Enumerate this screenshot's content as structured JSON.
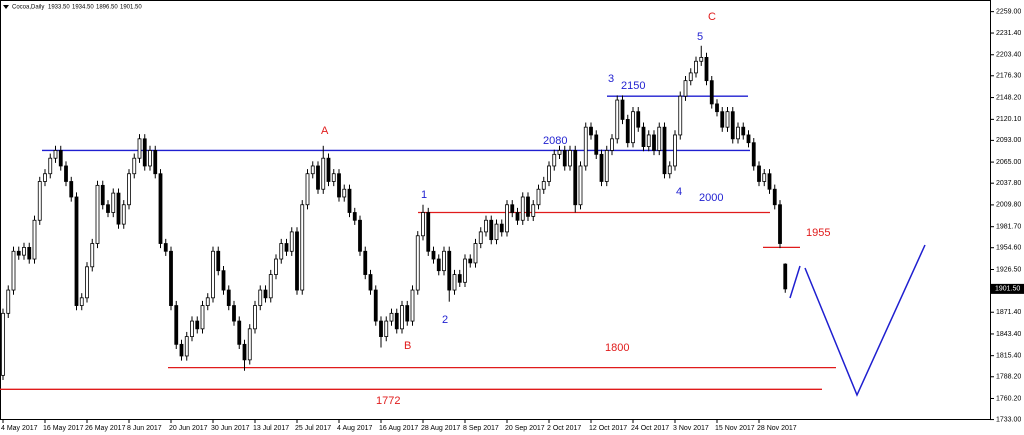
{
  "chart_data": {
    "type": "candlestick",
    "header": {
      "symbol": "Cocoa,Daily",
      "values": [
        {
          "value": 1933.5,
          "label": "1933.50"
        },
        {
          "value": 1934.5,
          "label": "1934.50"
        },
        {
          "value": 1896.5,
          "label": "1896.50"
        },
        {
          "value": 1901.5,
          "label": "1901.50"
        }
      ]
    },
    "last_price": {
      "value": 1901.5,
      "label": "1901.50"
    },
    "ylim": [
      1726,
      2274
    ],
    "yticks": [
      {
        "value": 2259,
        "label": "2259.00"
      },
      {
        "value": 2231.4,
        "label": "2231.40"
      },
      {
        "value": 2203.4,
        "label": "2203.40"
      },
      {
        "value": 2176.3,
        "label": "2176.30"
      },
      {
        "value": 2148.2,
        "label": "2148.20"
      },
      {
        "value": 2120.1,
        "label": "2120.10"
      },
      {
        "value": 2093,
        "label": "2093.00"
      },
      {
        "value": 2065,
        "label": "2065.00"
      },
      {
        "value": 2037.8,
        "label": "2037.80"
      },
      {
        "value": 2009.8,
        "label": "2009.80"
      },
      {
        "value": 1981.7,
        "label": "1981.70"
      },
      {
        "value": 1954.6,
        "label": "1954.60"
      },
      {
        "value": 1926.5,
        "label": "1926.50"
      },
      {
        "value": 1871.4,
        "label": "1871.40"
      },
      {
        "value": 1843.4,
        "label": "1843.40"
      },
      {
        "value": 1815.4,
        "label": "1815.40"
      },
      {
        "value": 1788.2,
        "label": "1788.20"
      },
      {
        "value": 1760.2,
        "label": "1760.20"
      },
      {
        "value": 1733,
        "label": "1733.00"
      }
    ],
    "categories": [
      "4 May 2017",
      null,
      null,
      null,
      null,
      null,
      null,
      null,
      "16 May 2017",
      null,
      null,
      null,
      null,
      null,
      null,
      null,
      "26 May 2017",
      null,
      null,
      null,
      null,
      null,
      null,
      null,
      "8 Jun 2017",
      null,
      null,
      null,
      null,
      null,
      null,
      null,
      "20 Jun 2017",
      null,
      null,
      null,
      null,
      null,
      null,
      null,
      "30 Jun 2017",
      null,
      null,
      null,
      null,
      null,
      null,
      null,
      "13 Jul 2017",
      null,
      null,
      null,
      null,
      null,
      null,
      null,
      "25 Jul 2017",
      null,
      null,
      null,
      null,
      null,
      null,
      null,
      "4 Aug 2017",
      null,
      null,
      null,
      null,
      null,
      null,
      null,
      "16 Aug 2017",
      null,
      null,
      null,
      null,
      null,
      null,
      null,
      "28 Aug 2017",
      null,
      null,
      null,
      null,
      null,
      null,
      null,
      "8 Sep 2017",
      null,
      null,
      null,
      null,
      null,
      null,
      null,
      "20 Sep 2017",
      null,
      null,
      null,
      null,
      null,
      null,
      null,
      "2 Oct 2017",
      null,
      null,
      null,
      null,
      null,
      null,
      null,
      "12 Oct 2017",
      null,
      null,
      null,
      null,
      null,
      null,
      null,
      "24 Oct 2017",
      null,
      null,
      null,
      null,
      null,
      null,
      null,
      "3 Nov 2017",
      null,
      null,
      null,
      null,
      null,
      null,
      null,
      "15 Nov 2017",
      null,
      null,
      null,
      null,
      null,
      null,
      null,
      "28 Nov 2017",
      null,
      null,
      null,
      null,
      null
    ],
    "candles": [
      [
        1790,
        1876,
        1784,
        1870
      ],
      [
        1870,
        1906,
        1864,
        1900
      ],
      [
        1900,
        1956,
        1894,
        1950
      ],
      [
        1950,
        1956,
        1939,
        1945
      ],
      [
        1945,
        1961,
        1939,
        1955
      ],
      [
        1955,
        1961,
        1934,
        1940
      ],
      [
        1940,
        1996,
        1934,
        1990
      ],
      [
        1990,
        2046,
        1984,
        2040
      ],
      [
        2040,
        2056,
        2034,
        2050
      ],
      [
        2050,
        2076,
        2044,
        2070
      ],
      [
        2070,
        2086,
        2064,
        2080
      ],
      [
        2080,
        2086,
        2054,
        2060
      ],
      [
        2060,
        2066,
        2034,
        2040
      ],
      [
        2040,
        2046,
        2014,
        2020
      ],
      [
        2020,
        2026,
        1874,
        1880
      ],
      [
        1880,
        1896,
        1874,
        1890
      ],
      [
        1890,
        1936,
        1884,
        1930
      ],
      [
        1930,
        1966,
        1924,
        1960
      ],
      [
        1960,
        2041,
        1954,
        2035
      ],
      [
        2035,
        2041,
        2004,
        2010
      ],
      [
        2010,
        2016,
        1994,
        2000
      ],
      [
        2000,
        2031,
        1994,
        2025
      ],
      [
        2025,
        2031,
        1979,
        1985
      ],
      [
        1985,
        2016,
        1979,
        2010
      ],
      [
        2010,
        2056,
        2004,
        2050
      ],
      [
        2050,
        2076,
        2044,
        2070
      ],
      [
        2070,
        2101,
        2064,
        2095
      ],
      [
        2095,
        2101,
        2054,
        2060
      ],
      [
        2060,
        2086,
        2054,
        2080
      ],
      [
        2080,
        2086,
        2044,
        2050
      ],
      [
        2050,
        2056,
        1954,
        1960
      ],
      [
        1960,
        1966,
        1944,
        1950
      ],
      [
        1950,
        1956,
        1874,
        1880
      ],
      [
        1880,
        1886,
        1824,
        1830
      ],
      [
        1830,
        1836,
        1809,
        1815
      ],
      [
        1815,
        1846,
        1809,
        1840
      ],
      [
        1840,
        1866,
        1834,
        1860
      ],
      [
        1860,
        1866,
        1844,
        1850
      ],
      [
        1850,
        1886,
        1844,
        1880
      ],
      [
        1880,
        1896,
        1874,
        1890
      ],
      [
        1890,
        1956,
        1884,
        1950
      ],
      [
        1950,
        1956,
        1919,
        1925
      ],
      [
        1925,
        1931,
        1894,
        1900
      ],
      [
        1900,
        1906,
        1874,
        1880
      ],
      [
        1880,
        1886,
        1854,
        1860
      ],
      [
        1860,
        1866,
        1824,
        1830
      ],
      [
        1830,
        1836,
        1796,
        1810
      ],
      [
        1810,
        1856,
        1804,
        1850
      ],
      [
        1850,
        1886,
        1844,
        1880
      ],
      [
        1880,
        1906,
        1874,
        1900
      ],
      [
        1900,
        1906,
        1884,
        1890
      ],
      [
        1890,
        1926,
        1884,
        1920
      ],
      [
        1920,
        1946,
        1914,
        1940
      ],
      [
        1940,
        1966,
        1934,
        1960
      ],
      [
        1960,
        1966,
        1944,
        1950
      ],
      [
        1950,
        1981,
        1944,
        1975
      ],
      [
        1975,
        1981,
        1894,
        1900
      ],
      [
        1900,
        2016,
        1894,
        2010
      ],
      [
        2010,
        2056,
        2004,
        2050
      ],
      [
        2050,
        2066,
        2044,
        2060
      ],
      [
        2060,
        2066,
        2024,
        2030
      ],
      [
        2030,
        2086,
        2024,
        2070
      ],
      [
        2070,
        2076,
        2034,
        2040
      ],
      [
        2040,
        2056,
        2034,
        2050
      ],
      [
        2050,
        2056,
        2014,
        2020
      ],
      [
        2020,
        2036,
        2014,
        2030
      ],
      [
        2030,
        2036,
        1994,
        2000
      ],
      [
        2000,
        2006,
        1984,
        1990
      ],
      [
        1990,
        1996,
        1944,
        1950
      ],
      [
        1950,
        1956,
        1914,
        1920
      ],
      [
        1920,
        1926,
        1894,
        1900
      ],
      [
        1900,
        1906,
        1854,
        1860
      ],
      [
        1860,
        1866,
        1826,
        1840
      ],
      [
        1840,
        1866,
        1834,
        1860
      ],
      [
        1860,
        1876,
        1854,
        1870
      ],
      [
        1870,
        1876,
        1844,
        1850
      ],
      [
        1850,
        1886,
        1844,
        1880
      ],
      [
        1880,
        1886,
        1854,
        1860
      ],
      [
        1860,
        1906,
        1854,
        1900
      ],
      [
        1900,
        1976,
        1894,
        1970
      ],
      [
        1970,
        2010,
        1964,
        2000
      ],
      [
        2000,
        2006,
        1944,
        1950
      ],
      [
        1950,
        1956,
        1934,
        1940
      ],
      [
        1940,
        1946,
        1919,
        1925
      ],
      [
        1925,
        1956,
        1919,
        1950
      ],
      [
        1950,
        1956,
        1885,
        1900
      ],
      [
        1900,
        1926,
        1894,
        1920
      ],
      [
        1920,
        1926,
        1904,
        1910
      ],
      [
        1910,
        1946,
        1904,
        1940
      ],
      [
        1940,
        1946,
        1929,
        1935
      ],
      [
        1935,
        1966,
        1929,
        1960
      ],
      [
        1960,
        1981,
        1954,
        1975
      ],
      [
        1975,
        1996,
        1969,
        1990
      ],
      [
        1990,
        1996,
        1959,
        1965
      ],
      [
        1965,
        1991,
        1959,
        1985
      ],
      [
        1985,
        1991,
        1969,
        1975
      ],
      [
        1975,
        2016,
        1969,
        2010
      ],
      [
        2010,
        2016,
        1994,
        2000
      ],
      [
        2000,
        2006,
        1984,
        1990
      ],
      [
        1990,
        2026,
        1984,
        2020
      ],
      [
        2020,
        2026,
        1989,
        1995
      ],
      [
        1995,
        2016,
        1989,
        2010
      ],
      [
        2010,
        2036,
        2004,
        2030
      ],
      [
        2030,
        2046,
        2024,
        2040
      ],
      [
        2040,
        2066,
        2034,
        2060
      ],
      [
        2060,
        2081,
        2054,
        2075
      ],
      [
        2075,
        2086,
        2069,
        2080
      ],
      [
        2080,
        2086,
        2054,
        2060
      ],
      [
        2060,
        2086,
        2054,
        2080
      ],
      [
        2080,
        2086,
        2000,
        2010
      ],
      [
        2010,
        2066,
        2004,
        2060
      ],
      [
        2060,
        2116,
        2054,
        2110
      ],
      [
        2110,
        2116,
        2094,
        2100
      ],
      [
        2100,
        2106,
        2069,
        2075
      ],
      [
        2075,
        2081,
        2034,
        2040
      ],
      [
        2040,
        2086,
        2034,
        2080
      ],
      [
        2080,
        2101,
        2074,
        2095
      ],
      [
        2095,
        2151,
        2089,
        2145
      ],
      [
        2145,
        2151,
        2114,
        2120
      ],
      [
        2120,
        2126,
        2084,
        2090
      ],
      [
        2090,
        2136,
        2084,
        2130
      ],
      [
        2130,
        2136,
        2104,
        2110
      ],
      [
        2110,
        2116,
        2079,
        2085
      ],
      [
        2085,
        2106,
        2079,
        2100
      ],
      [
        2100,
        2106,
        2074,
        2080
      ],
      [
        2080,
        2116,
        2074,
        2110
      ],
      [
        2110,
        2116,
        2044,
        2050
      ],
      [
        2050,
        2066,
        2044,
        2060
      ],
      [
        2060,
        2106,
        2054,
        2100
      ],
      [
        2100,
        2156,
        2094,
        2150
      ],
      [
        2150,
        2176,
        2144,
        2170
      ],
      [
        2170,
        2186,
        2164,
        2180
      ],
      [
        2180,
        2201,
        2174,
        2195
      ],
      [
        2195,
        2215,
        2189,
        2200
      ],
      [
        2200,
        2206,
        2164,
        2170
      ],
      [
        2170,
        2176,
        2134,
        2140
      ],
      [
        2140,
        2146,
        2124,
        2130
      ],
      [
        2130,
        2136,
        2104,
        2110
      ],
      [
        2110,
        2136,
        2104,
        2130
      ],
      [
        2130,
        2136,
        2089,
        2095
      ],
      [
        2095,
        2116,
        2089,
        2110
      ],
      [
        2110,
        2116,
        2094,
        2100
      ],
      [
        2100,
        2106,
        2084,
        2090
      ],
      [
        2090,
        2096,
        2054,
        2060
      ],
      [
        2060,
        2066,
        2034,
        2040
      ],
      [
        2040,
        2056,
        2034,
        2050
      ],
      [
        2050,
        2056,
        2024,
        2030
      ],
      [
        2030,
        2036,
        2004,
        2010
      ],
      [
        2010,
        2016,
        1954,
        1960
      ],
      [
        1933.5,
        1934.5,
        1896.5,
        1901.5
      ]
    ],
    "levels": [
      {
        "label": "2080",
        "value": 2080,
        "color": "#1f1fd0"
      },
      {
        "label": "2150",
        "value": 2150,
        "color": "#1f1fd0"
      },
      {
        "label": "2000",
        "value": 2000,
        "color": "#e01b1b"
      },
      {
        "label": "1800",
        "value": 1800,
        "color": "#e01b1b"
      },
      {
        "label": "1772",
        "value": 1772,
        "color": "#e01b1b"
      },
      {
        "label": "1955",
        "value": 1955,
        "color": "#e01b1b"
      }
    ],
    "waves": [
      "A",
      "B",
      "C",
      "1",
      "2",
      "3",
      "4",
      "5"
    ]
  }
}
